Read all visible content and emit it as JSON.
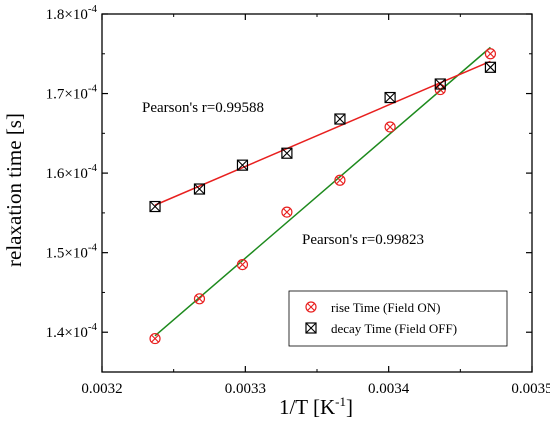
{
  "chart_data": {
    "type": "scatter",
    "xlabel": "1/T [K",
    "xlabel_sup": "-1",
    "xlabel_end": "]",
    "ylabel": "relaxation time [s]",
    "xlim": [
      0.0032,
      0.0035
    ],
    "ylim": [
      0.000135,
      0.00018
    ],
    "x_ticks": [
      {
        "value": 0.0032,
        "label": "0.0032"
      },
      {
        "value": 0.0033,
        "label": "0.0033"
      },
      {
        "value": 0.0034,
        "label": "0.0034"
      },
      {
        "value": 0.0035,
        "label": "0.0035"
      }
    ],
    "y_ticks": [
      {
        "value": 0.00014,
        "mant": "1.4×10",
        "exp": "-4"
      },
      {
        "value": 0.00015,
        "mant": "1.5×10",
        "exp": "-4"
      },
      {
        "value": 0.00016,
        "mant": "1.6×10",
        "exp": "-4"
      },
      {
        "value": 0.00017,
        "mant": "1.7×10",
        "exp": "-4"
      },
      {
        "value": 0.00018,
        "mant": "1.8×10",
        "exp": "-4"
      }
    ],
    "x": [
      0.003237,
      0.003268,
      0.003298,
      0.003329,
      0.003366,
      0.003401,
      0.003436,
      0.003471
    ],
    "series": [
      {
        "name": "rise Time (Field ON)",
        "marker": "circle-x",
        "color": "#e8201f",
        "fit_color": "#1d8a1d",
        "values": [
          0.0001392,
          0.0001442,
          0.0001485,
          0.0001551,
          0.0001591,
          0.0001658,
          0.0001705,
          0.000175
        ]
      },
      {
        "name": "decay Time (Field OFF)",
        "marker": "square-x",
        "color": "#000000",
        "fit_color": "#e8201f",
        "values": [
          0.0001558,
          0.000158,
          0.000161,
          0.0001625,
          0.0001668,
          0.0001695,
          0.0001712,
          0.0001733
        ]
      }
    ],
    "annotations": [
      {
        "text": "Pearson's r=0.99588"
      },
      {
        "text": "Pearson's r=0.99823"
      }
    ],
    "legend_position": "bottom-right",
    "grid": false
  }
}
